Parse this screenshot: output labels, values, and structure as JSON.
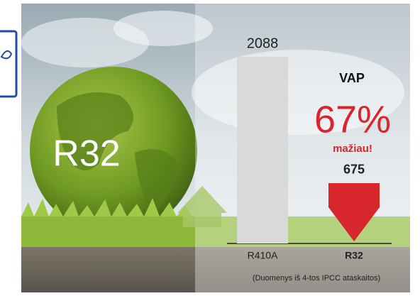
{
  "chart_data": {
    "type": "bar",
    "categories": [
      "R410A",
      "R32"
    ],
    "values": [
      2088,
      675
    ],
    "colors": [
      "#d9d9d9",
      "#d7262c"
    ],
    "annotations": {
      "globe_label": "R32",
      "metric": "VAP",
      "reduction": "67%",
      "reduction_note": "mažiau!",
      "source": "(Duomenys iš 4-tos IPCC ataskaitos)"
    }
  }
}
